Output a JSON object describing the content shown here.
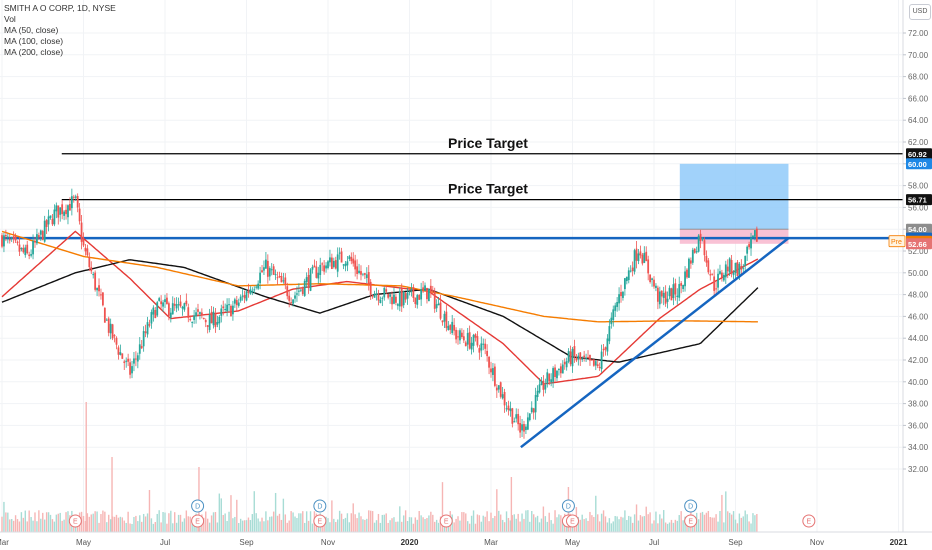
{
  "header": {
    "title": "SMITH A O CORP, 1D, NYSE",
    "indicators": [
      "Vol",
      "MA (50, close)",
      "MA (100, close)",
      "MA (200, close)"
    ]
  },
  "currency_button": "USD",
  "chart_data": {
    "type": "candlestick",
    "title": "SMITH A O CORP, 1D, NYSE",
    "x_ticks": [
      "Mar",
      "May",
      "Jul",
      "Sep",
      "Nov",
      "2020",
      "Mar",
      "May",
      "Jul",
      "Sep",
      "Nov",
      "2021"
    ],
    "y_ticks": [
      32.0,
      34.0,
      36.0,
      38.0,
      40.0,
      42.0,
      44.0,
      46.0,
      48.0,
      50.0,
      52.0,
      54.0,
      56.0,
      58.0,
      60.0,
      62.0,
      64.0,
      66.0,
      68.0,
      70.0,
      72.0
    ],
    "ylim": [
      31,
      73
    ],
    "colors": {
      "up": "#26a69a",
      "down": "#ef5350",
      "ma50": "#e53935",
      "ma100": "#111111",
      "ma200": "#f57c00",
      "trendline": "#1565c0",
      "target_box": "#90caf9",
      "risk_box": "#f8bbd0",
      "price_up": "#26a69a",
      "pre": "#f57c00"
    },
    "anchor_prices": [
      [
        "2019-03",
        53.2
      ],
      [
        "2019-03-20",
        51.5
      ],
      [
        "2019-04-10",
        55.5
      ],
      [
        "2019-04-25",
        56.6
      ],
      [
        "2019-05-01",
        52.3
      ],
      [
        "2019-05-20",
        44.8
      ],
      [
        "2019-06-05",
        40.8
      ],
      [
        "2019-06-25",
        47.0
      ],
      [
        "2019-07-15",
        46.5
      ],
      [
        "2019-08-05",
        45.5
      ],
      [
        "2019-08-25",
        47.2
      ],
      [
        "2019-09-15",
        50.5
      ],
      [
        "2019-10-05",
        47.8
      ],
      [
        "2019-10-25",
        50.5
      ],
      [
        "2019-11-15",
        51.5
      ],
      [
        "2019-12-05",
        48.3
      ],
      [
        "2019-12-25",
        47.5
      ],
      [
        "2020-01-15",
        48.3
      ],
      [
        "2020-02-05",
        44.3
      ],
      [
        "2020-02-25",
        43.2
      ],
      [
        "2020-03-10",
        38.5
      ],
      [
        "2020-03-23",
        35.5
      ],
      [
        "2020-04-10",
        39.8
      ],
      [
        "2020-04-30",
        42.3
      ],
      [
        "2020-05-20",
        41.2
      ],
      [
        "2020-06-05",
        47.8
      ],
      [
        "2020-06-20",
        52.4
      ],
      [
        "2020-07-05",
        47.5
      ],
      [
        "2020-07-20",
        48.5
      ],
      [
        "2020-08-05",
        53.6
      ],
      [
        "2020-08-15",
        48.8
      ],
      [
        "2020-08-25",
        50.6
      ],
      [
        "2020-09-05",
        50.3
      ],
      [
        "2020-09-15",
        53.2
      ],
      [
        "2020-09-18",
        53.3
      ]
    ],
    "moving_averages": [
      {
        "name": "MA (50, close)",
        "anchors": [
          [
            "2019-03",
            47.8
          ],
          [
            "2019-04-25",
            53.8
          ],
          [
            "2019-06-05",
            49.5
          ],
          [
            "2019-07-05",
            45.8
          ],
          [
            "2019-08-25",
            46.5
          ],
          [
            "2019-10-05",
            48.5
          ],
          [
            "2019-11-15",
            49.2
          ],
          [
            "2020-01-15",
            48.3
          ],
          [
            "2020-03-10",
            43.5
          ],
          [
            "2020-04-10",
            39.8
          ],
          [
            "2020-05-20",
            40.5
          ],
          [
            "2020-07-05",
            45.8
          ],
          [
            "2020-08-05",
            48.5
          ],
          [
            "2020-09-18",
            51.3
          ]
        ]
      },
      {
        "name": "MA (100, close)",
        "anchors": [
          [
            "2019-03",
            47.3
          ],
          [
            "2019-04-25",
            50.0
          ],
          [
            "2019-06-05",
            51.2
          ],
          [
            "2019-07-15",
            50.5
          ],
          [
            "2019-09-15",
            47.8
          ],
          [
            "2019-10-25",
            46.3
          ],
          [
            "2019-12-05",
            48.0
          ],
          [
            "2020-01-15",
            48.5
          ],
          [
            "2020-03-10",
            46.0
          ],
          [
            "2020-04-30",
            42.3
          ],
          [
            "2020-06-05",
            41.8
          ],
          [
            "2020-08-05",
            43.5
          ],
          [
            "2020-09-18",
            48.7
          ]
        ]
      },
      {
        "name": "MA (200, close)",
        "anchors": [
          [
            "2019-03",
            53.8
          ],
          [
            "2019-05-01",
            51.5
          ],
          [
            "2019-06-25",
            50.5
          ],
          [
            "2019-08-25",
            48.8
          ],
          [
            "2019-10-25",
            49.0
          ],
          [
            "2019-12-25",
            48.8
          ],
          [
            "2020-02-05",
            47.8
          ],
          [
            "2020-04-10",
            46.0
          ],
          [
            "2020-05-20",
            45.5
          ],
          [
            "2020-07-20",
            45.6
          ],
          [
            "2020-09-18",
            45.5
          ]
        ]
      }
    ],
    "annotations": [
      {
        "label": "Price Target",
        "price": 60.92
      },
      {
        "label": "Price Target",
        "price": 56.71
      }
    ],
    "horizontal_lines": [
      {
        "price": 60.92,
        "start": "2019-04-15",
        "color": "#000000"
      },
      {
        "price": 56.71,
        "start": "2019-04-15",
        "color": "#000000"
      },
      {
        "price": 53.18,
        "start": "2019-03",
        "color": "#1565c0"
      }
    ],
    "trendline": {
      "from": [
        "2020-03-23",
        34.0
      ],
      "to": [
        "2020-10-10",
        53.18
      ]
    },
    "target_box": {
      "from_date": "2020-07-20",
      "to_date": "2020-10-10",
      "top": 60.0,
      "bottom": 54.0
    },
    "risk_box": {
      "from_date": "2020-07-20",
      "to_date": "2020-10-10",
      "top": 54.0,
      "bottom": 52.66
    },
    "price_labels": [
      {
        "text": "60.92",
        "price": 60.92,
        "bg": "#111111"
      },
      {
        "text": "60.00",
        "price": 60.0,
        "bg": "#1e88e5"
      },
      {
        "text": "56.71",
        "price": 56.71,
        "bg": "#111111"
      },
      {
        "text": "54.00",
        "price": 54.0,
        "bg": "#8d8d8d"
      },
      {
        "text": "53.18",
        "price": 53.18,
        "bg": "#1565c0"
      },
      {
        "text": "53.00",
        "price": 52.9,
        "bg": "#f57c00"
      },
      {
        "text": "52.66",
        "price": 52.66,
        "bg": "#e57373"
      }
    ],
    "pre_label": "Pre",
    "events": [
      {
        "type": "E",
        "date": "2019-04-25"
      },
      {
        "type": "E",
        "date": "2019-07-25"
      },
      {
        "type": "D",
        "date": "2019-07-25"
      },
      {
        "type": "E",
        "date": "2019-10-25"
      },
      {
        "type": "D",
        "date": "2019-10-25"
      },
      {
        "type": "E",
        "date": "2020-01-28"
      },
      {
        "type": "E",
        "date": "2020-04-28"
      },
      {
        "type": "E",
        "date": "2020-05-01"
      },
      {
        "type": "D",
        "date": "2020-04-28"
      },
      {
        "type": "E",
        "date": "2020-07-28"
      },
      {
        "type": "D",
        "date": "2020-07-28"
      },
      {
        "type": "E",
        "date": "2020-10-25"
      }
    ]
  }
}
